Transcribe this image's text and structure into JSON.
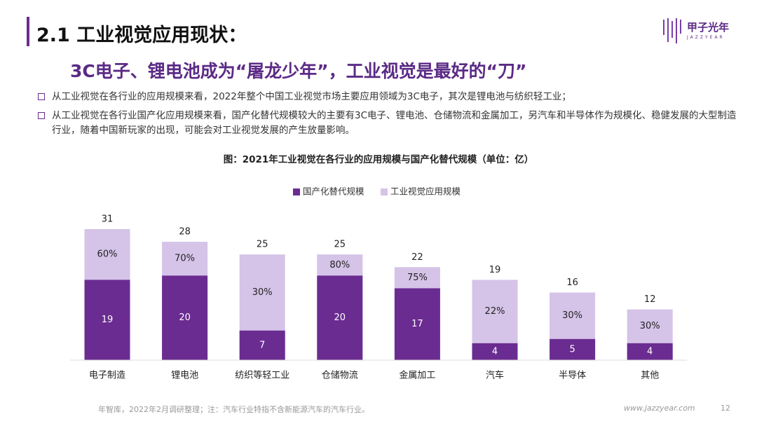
{
  "header": {
    "title": "2.1 工业视觉应用现状：",
    "logo": "甲子光年",
    "logo_sub": "JAZZYEAR"
  },
  "subtitle": "3C电子、锂电池成为“屠龙少年”，工业视觉是最好的“刀”",
  "bullets": [
    "从工业视觉在各行业的应用规模来看，2022年整个中国工业视觉市场主要应用领域为3C电子，其次是锂电池与纺织轻工业；",
    "从工业视觉在各行业国产化应用规模来看，国产化替代规模较大的主要有3C电子、锂电池、仓储物流和金属加工，另汽车和半导体作为规模化、稳健发展的大型制造行业，随着中国新玩家的出现，可能会对工业视觉发展的产生放量影响。"
  ],
  "chart_data": {
    "type": "bar",
    "title": "图：2021年工业视觉在各行业的应用规模与国产化替代规模（单位：亿）",
    "categories": [
      "电子制造",
      "锂电池",
      "纺织等轻工业",
      "仓储物流",
      "金属加工",
      "汽车",
      "半导体",
      "其他"
    ],
    "series": [
      {
        "name": "国产化替代规模",
        "color": "#6a2c91",
        "values": [
          19,
          20,
          7,
          20,
          17,
          4,
          5,
          4
        ]
      },
      {
        "name": "工业视觉应用规模",
        "color": "#d5c3e8",
        "values": [
          31,
          28,
          25,
          25,
          22,
          19,
          16,
          12
        ]
      }
    ],
    "ratios": {
      "values": [
        60,
        70,
        30,
        80,
        75,
        22,
        30,
        30
      ],
      "value_labels": [
        "60%",
        "70%",
        "30%",
        "80%",
        "75%",
        "22%",
        "30%",
        "30%"
      ]
    },
    "legend": "top"
  },
  "footer": {
    "source": "年智库，2022年2月调研整理；注：汽车行业特指不含新能源汽车的汽车行业。",
    "url": "www.jazzyear.com",
    "page": "12"
  }
}
